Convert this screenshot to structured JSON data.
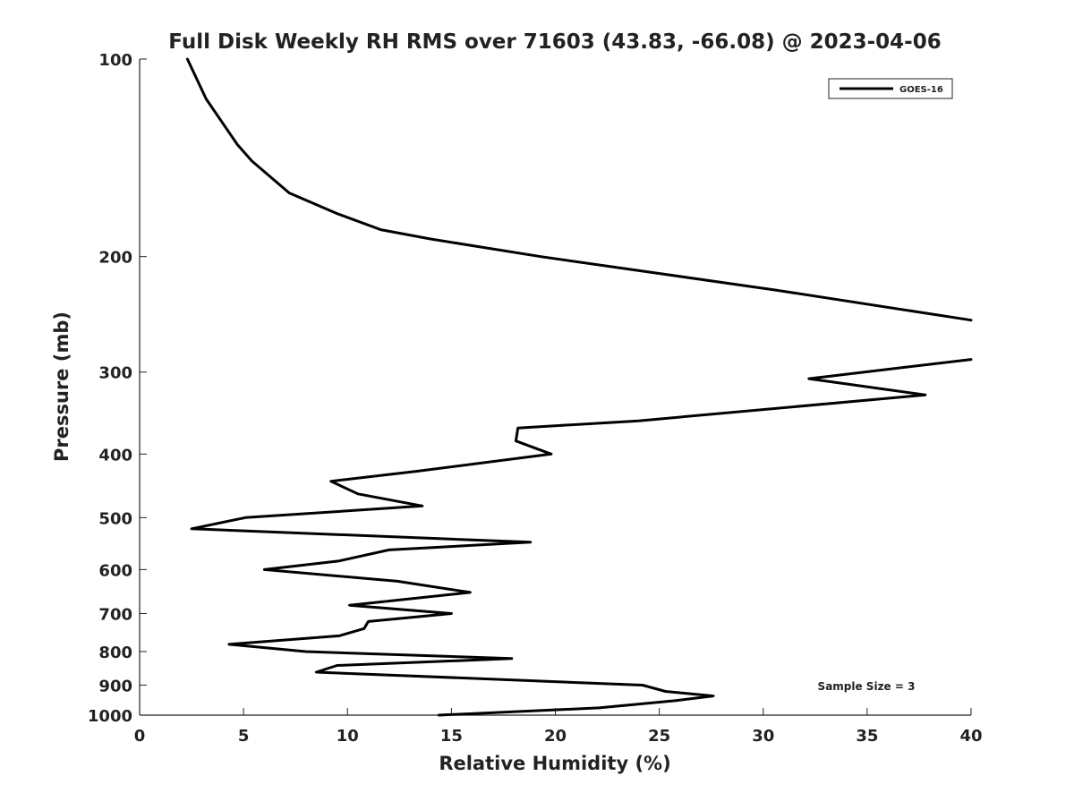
{
  "chart_data": {
    "type": "line",
    "title": "Full Disk Weekly RH RMS over 71603 (43.83, -66.08) @ 2023-04-06",
    "xlabel": "Relative Humidity (%)",
    "ylabel": "Pressure (mb)",
    "xlim": [
      0,
      40
    ],
    "ylim": [
      100,
      1000
    ],
    "y_scale": "log",
    "y_inverted": true,
    "grid": false,
    "legend_position": "top-right",
    "x_ticks": [
      0,
      5,
      10,
      15,
      20,
      25,
      30,
      35,
      40
    ],
    "x_tick_labels": [
      "0",
      "5",
      "10",
      "15",
      "20",
      "25",
      "30",
      "35",
      "40"
    ],
    "y_ticks": [
      100,
      200,
      300,
      400,
      500,
      600,
      700,
      800,
      900,
      1000
    ],
    "y_tick_labels": [
      "100",
      "200",
      "300",
      "400",
      "500",
      "600",
      "700",
      "800",
      "900",
      "1000"
    ],
    "series": [
      {
        "name": "GOES-16",
        "color": "#000000",
        "segments": [
          [
            {
              "x": 2.3,
              "y": 100
            },
            {
              "x": 3.2,
              "y": 115
            },
            {
              "x": 4.7,
              "y": 135
            },
            {
              "x": 5.4,
              "y": 143
            },
            {
              "x": 7.2,
              "y": 160
            },
            {
              "x": 9.5,
              "y": 172
            },
            {
              "x": 11.6,
              "y": 182
            },
            {
              "x": 14.0,
              "y": 188
            },
            {
              "x": 19.3,
              "y": 200
            },
            {
              "x": 30.6,
              "y": 225
            },
            {
              "x": 40.0,
              "y": 250
            }
          ],
          [
            {
              "x": 40.0,
              "y": 287
            },
            {
              "x": 32.2,
              "y": 307
            },
            {
              "x": 37.8,
              "y": 325
            },
            {
              "x": 24.0,
              "y": 356
            },
            {
              "x": 18.2,
              "y": 365
            },
            {
              "x": 18.1,
              "y": 382
            },
            {
              "x": 19.8,
              "y": 400
            },
            {
              "x": 13.3,
              "y": 425
            },
            {
              "x": 9.2,
              "y": 440
            },
            {
              "x": 10.5,
              "y": 460
            },
            {
              "x": 13.6,
              "y": 480
            },
            {
              "x": 5.1,
              "y": 500
            },
            {
              "x": 2.5,
              "y": 520
            },
            {
              "x": 18.8,
              "y": 545
            },
            {
              "x": 12.0,
              "y": 560
            },
            {
              "x": 9.6,
              "y": 582
            },
            {
              "x": 6.0,
              "y": 600
            },
            {
              "x": 12.4,
              "y": 625
            },
            {
              "x": 15.9,
              "y": 650
            },
            {
              "x": 10.1,
              "y": 680
            },
            {
              "x": 15.0,
              "y": 700
            },
            {
              "x": 11.0,
              "y": 720
            },
            {
              "x": 10.8,
              "y": 738
            },
            {
              "x": 9.6,
              "y": 757
            },
            {
              "x": 4.3,
              "y": 780
            },
            {
              "x": 8.0,
              "y": 800
            },
            {
              "x": 17.9,
              "y": 820
            },
            {
              "x": 9.5,
              "y": 840
            },
            {
              "x": 8.5,
              "y": 860
            },
            {
              "x": 24.2,
              "y": 900
            },
            {
              "x": 25.3,
              "y": 920
            },
            {
              "x": 27.6,
              "y": 935
            },
            {
              "x": 25.8,
              "y": 950
            },
            {
              "x": 22.1,
              "y": 975
            },
            {
              "x": 14.4,
              "y": 1000
            }
          ]
        ]
      }
    ],
    "annotations": [
      {
        "text": "Sample Size = 3"
      }
    ]
  }
}
